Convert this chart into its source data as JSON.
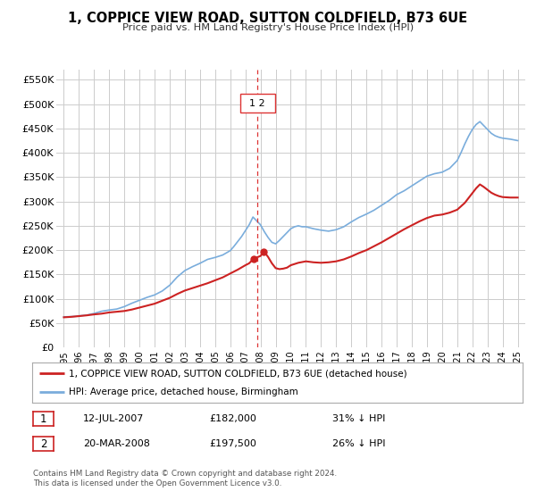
{
  "title": "1, COPPICE VIEW ROAD, SUTTON COLDFIELD, B73 6UE",
  "subtitle": "Price paid vs. HM Land Registry's House Price Index (HPI)",
  "ylabel_values": [
    "£0",
    "£50K",
    "£100K",
    "£150K",
    "£200K",
    "£250K",
    "£300K",
    "£350K",
    "£400K",
    "£450K",
    "£500K",
    "£550K"
  ],
  "yticks": [
    0,
    50000,
    100000,
    150000,
    200000,
    250000,
    300000,
    350000,
    400000,
    450000,
    500000,
    550000
  ],
  "ylim": [
    0,
    570000
  ],
  "xlim": [
    1994.5,
    2025.5
  ],
  "xtick_years": [
    1995,
    1996,
    1997,
    1998,
    1999,
    2000,
    2001,
    2002,
    2003,
    2004,
    2005,
    2006,
    2007,
    2008,
    2009,
    2010,
    2011,
    2012,
    2013,
    2014,
    2015,
    2016,
    2017,
    2018,
    2019,
    2020,
    2021,
    2022,
    2023,
    2024,
    2025
  ],
  "hpi_color": "#7aaddc",
  "price_color": "#cc2222",
  "vline_color": "#dd3333",
  "bg_color": "#ffffff",
  "grid_color": "#cccccc",
  "legend_line1": "1, COPPICE VIEW ROAD, SUTTON COLDFIELD, B73 6UE (detached house)",
  "legend_line2": "HPI: Average price, detached house, Birmingham",
  "sale1_date": "12-JUL-2007",
  "sale1_price": "£182,000",
  "sale1_info": "31% ↓ HPI",
  "sale1_year": 2007.53,
  "sale1_value": 182000,
  "sale2_date": "20-MAR-2008",
  "sale2_price": "£197,500",
  "sale2_info": "26% ↓ HPI",
  "sale2_year": 2008.22,
  "sale2_value": 197500,
  "vline_year": 2007.8,
  "footnote1": "Contains HM Land Registry data © Crown copyright and database right 2024.",
  "footnote2": "This data is licensed under the Open Government Licence v3.0.",
  "hpi_data": [
    [
      1995.0,
      63000
    ],
    [
      1995.25,
      63200
    ],
    [
      1995.5,
      63500
    ],
    [
      1995.75,
      64000
    ],
    [
      1996.0,
      65000
    ],
    [
      1996.5,
      66500
    ],
    [
      1997.0,
      70000
    ],
    [
      1997.5,
      74500
    ],
    [
      1998.0,
      77000
    ],
    [
      1998.5,
      79000
    ],
    [
      1999.0,
      84000
    ],
    [
      1999.5,
      91000
    ],
    [
      2000.0,
      97000
    ],
    [
      2000.5,
      103000
    ],
    [
      2001.0,
      108000
    ],
    [
      2001.5,
      116000
    ],
    [
      2002.0,
      128000
    ],
    [
      2002.5,
      145000
    ],
    [
      2003.0,
      158000
    ],
    [
      2003.5,
      166000
    ],
    [
      2004.0,
      173000
    ],
    [
      2004.5,
      181000
    ],
    [
      2005.0,
      185000
    ],
    [
      2005.5,
      190000
    ],
    [
      2006.0,
      199000
    ],
    [
      2006.25,
      208000
    ],
    [
      2006.5,
      218000
    ],
    [
      2006.75,
      228000
    ],
    [
      2007.0,
      240000
    ],
    [
      2007.25,
      252000
    ],
    [
      2007.5,
      268000
    ],
    [
      2007.75,
      260000
    ],
    [
      2008.0,
      252000
    ],
    [
      2008.25,
      238000
    ],
    [
      2008.5,
      226000
    ],
    [
      2008.75,
      216000
    ],
    [
      2009.0,
      213000
    ],
    [
      2009.25,
      220000
    ],
    [
      2009.5,
      228000
    ],
    [
      2009.75,
      236000
    ],
    [
      2010.0,
      244000
    ],
    [
      2010.25,
      248000
    ],
    [
      2010.5,
      250000
    ],
    [
      2010.75,
      248000
    ],
    [
      2011.0,
      248000
    ],
    [
      2011.5,
      244000
    ],
    [
      2012.0,
      241000
    ],
    [
      2012.5,
      239000
    ],
    [
      2013.0,
      242000
    ],
    [
      2013.5,
      248000
    ],
    [
      2014.0,
      258000
    ],
    [
      2014.5,
      267000
    ],
    [
      2015.0,
      274000
    ],
    [
      2015.5,
      282000
    ],
    [
      2016.0,
      292000
    ],
    [
      2016.5,
      302000
    ],
    [
      2017.0,
      314000
    ],
    [
      2017.5,
      322000
    ],
    [
      2018.0,
      332000
    ],
    [
      2018.5,
      342000
    ],
    [
      2019.0,
      352000
    ],
    [
      2019.5,
      357000
    ],
    [
      2020.0,
      360000
    ],
    [
      2020.5,
      368000
    ],
    [
      2021.0,
      384000
    ],
    [
      2021.25,
      400000
    ],
    [
      2021.5,
      418000
    ],
    [
      2021.75,
      434000
    ],
    [
      2022.0,
      448000
    ],
    [
      2022.25,
      458000
    ],
    [
      2022.5,
      464000
    ],
    [
      2022.75,
      456000
    ],
    [
      2023.0,
      448000
    ],
    [
      2023.25,
      440000
    ],
    [
      2023.5,
      435000
    ],
    [
      2023.75,
      432000
    ],
    [
      2024.0,
      430000
    ],
    [
      2024.5,
      428000
    ],
    [
      2025.0,
      425000
    ]
  ],
  "price_data": [
    [
      1995.0,
      62000
    ],
    [
      1995.5,
      63000
    ],
    [
      1996.0,
      64500
    ],
    [
      1996.5,
      66000
    ],
    [
      1997.0,
      68000
    ],
    [
      1997.5,
      69500
    ],
    [
      1998.0,
      72000
    ],
    [
      1998.5,
      73500
    ],
    [
      1999.0,
      75000
    ],
    [
      1999.5,
      78000
    ],
    [
      2000.0,
      82000
    ],
    [
      2000.5,
      86000
    ],
    [
      2001.0,
      90000
    ],
    [
      2001.5,
      96000
    ],
    [
      2002.0,
      102000
    ],
    [
      2002.5,
      110000
    ],
    [
      2003.0,
      117000
    ],
    [
      2003.5,
      122000
    ],
    [
      2004.0,
      127000
    ],
    [
      2004.5,
      132000
    ],
    [
      2005.0,
      138000
    ],
    [
      2005.5,
      144000
    ],
    [
      2006.0,
      152000
    ],
    [
      2006.5,
      160000
    ],
    [
      2007.0,
      169000
    ],
    [
      2007.25,
      173000
    ],
    [
      2007.53,
      182000
    ],
    [
      2007.75,
      185000
    ],
    [
      2008.0,
      188000
    ],
    [
      2008.22,
      197500
    ],
    [
      2008.5,
      186000
    ],
    [
      2008.75,
      173000
    ],
    [
      2009.0,
      163000
    ],
    [
      2009.25,
      161000
    ],
    [
      2009.5,
      162000
    ],
    [
      2009.75,
      164000
    ],
    [
      2010.0,
      169000
    ],
    [
      2010.5,
      174000
    ],
    [
      2011.0,
      177000
    ],
    [
      2011.5,
      175000
    ],
    [
      2012.0,
      174000
    ],
    [
      2012.5,
      175000
    ],
    [
      2013.0,
      177000
    ],
    [
      2013.5,
      181000
    ],
    [
      2014.0,
      187000
    ],
    [
      2014.5,
      194000
    ],
    [
      2015.0,
      200000
    ],
    [
      2015.5,
      208000
    ],
    [
      2016.0,
      216000
    ],
    [
      2016.5,
      225000
    ],
    [
      2017.0,
      234000
    ],
    [
      2017.5,
      243000
    ],
    [
      2018.0,
      251000
    ],
    [
      2018.5,
      259000
    ],
    [
      2019.0,
      266000
    ],
    [
      2019.5,
      271000
    ],
    [
      2020.0,
      273000
    ],
    [
      2020.5,
      277000
    ],
    [
      2021.0,
      283000
    ],
    [
      2021.25,
      290000
    ],
    [
      2021.5,
      297000
    ],
    [
      2021.75,
      307000
    ],
    [
      2022.0,
      317000
    ],
    [
      2022.25,
      327000
    ],
    [
      2022.5,
      335000
    ],
    [
      2022.75,
      330000
    ],
    [
      2023.0,
      324000
    ],
    [
      2023.25,
      318000
    ],
    [
      2023.5,
      314000
    ],
    [
      2023.75,
      311000
    ],
    [
      2024.0,
      309000
    ],
    [
      2024.5,
      308000
    ],
    [
      2025.0,
      308000
    ]
  ]
}
